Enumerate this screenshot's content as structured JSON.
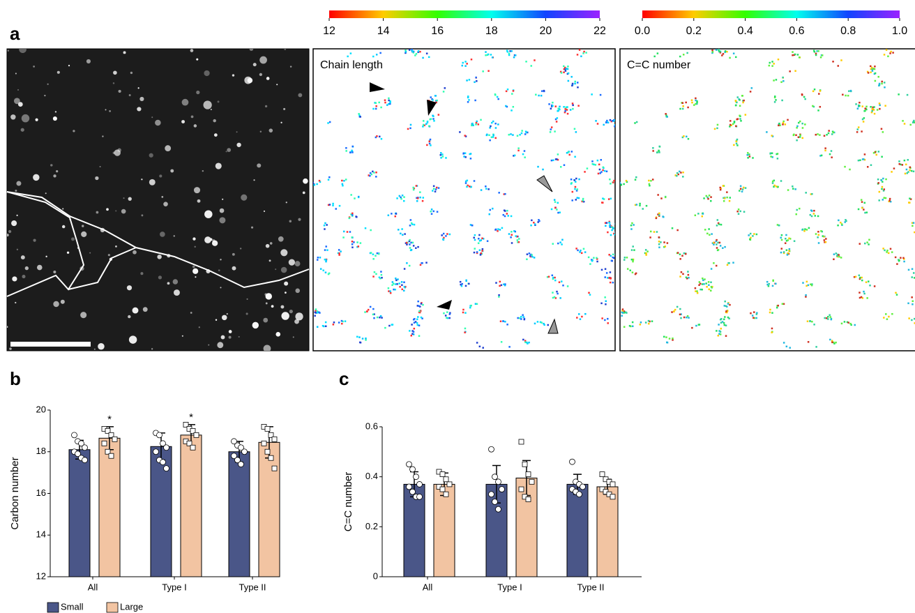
{
  "panel_labels": {
    "a": "a",
    "b": "b",
    "c": "c"
  },
  "image_labels": [
    "Chain length",
    "C=C number"
  ],
  "colorbars": [
    {
      "lim": [
        12,
        22
      ],
      "ticks": [
        12,
        14,
        16,
        18,
        20,
        22
      ]
    },
    {
      "lim": [
        0,
        1
      ],
      "ticks": [
        {
          "value": 0,
          "label": "0.0"
        },
        0.2,
        0.4,
        0.6,
        0.8,
        {
          "value": 1,
          "label": "1.0"
        }
      ]
    }
  ],
  "chart_data": [
    {
      "type": "bar",
      "ylabel": "Carbon number",
      "categories": [
        "All",
        "Type I",
        "Type II"
      ],
      "series": [
        {
          "name": "Small",
          "color": "#4a5688",
          "values": [
            18.1,
            18.25,
            18.0
          ],
          "errors": [
            0.45,
            0.65,
            0.5
          ],
          "points": [
            [
              18.8,
              18.5,
              18.4,
              18.2,
              18.0,
              17.9,
              17.7,
              17.6
            ],
            [
              18.9,
              18.8,
              18.4,
              18.2,
              18.0,
              17.6,
              17.5,
              17.2
            ],
            [
              18.5,
              18.3,
              18.2,
              18.0,
              17.8,
              17.6,
              17.4
            ]
          ]
        },
        {
          "name": "Large",
          "color": "#f2c4a2",
          "values": [
            18.65,
            18.8,
            18.45
          ],
          "errors": [
            0.55,
            0.5,
            0.75
          ],
          "points": [
            [
              19.1,
              19.0,
              18.8,
              18.6,
              18.4,
              18.0,
              17.8
            ],
            [
              19.3,
              19.1,
              19.0,
              18.8,
              18.5,
              18.4,
              18.2
            ],
            [
              19.2,
              19.1,
              18.8,
              18.6,
              18.4,
              18.0,
              17.7,
              17.2
            ]
          ],
          "marks": [
            "*",
            "*",
            null
          ]
        }
      ],
      "ylim": [
        12,
        20
      ],
      "yticks": [
        12,
        14,
        16,
        18,
        20
      ],
      "legend": "bottom-left"
    },
    {
      "type": "bar",
      "ylabel": "C=C number",
      "categories": [
        "All",
        "Type I",
        "Type II"
      ],
      "series": [
        {
          "color": "#4a5688",
          "values": [
            0.37,
            0.37,
            0.37
          ],
          "errors": [
            0.05,
            0.075,
            0.04
          ],
          "points": [
            [
              0.45,
              0.43,
              0.4,
              0.37,
              0.36,
              0.34,
              0.32,
              0.32
            ],
            [
              0.51,
              0.4,
              0.38,
              0.35,
              0.33,
              0.3,
              0.27
            ],
            [
              0.46,
              0.38,
              0.37,
              0.36,
              0.35,
              0.34,
              0.33
            ]
          ]
        },
        {
          "color": "#f2c4a2",
          "values": [
            0.37,
            0.395,
            0.36
          ],
          "errors": [
            0.045,
            0.07,
            0.03
          ],
          "points": [
            [
              0.42,
              0.41,
              0.39,
              0.37,
              0.36,
              0.35,
              0.33
            ],
            [
              0.54,
              0.45,
              0.41,
              0.38,
              0.35,
              0.32,
              0.31
            ],
            [
              0.41,
              0.39,
              0.38,
              0.37,
              0.35,
              0.34,
              0.33,
              0.32
            ]
          ]
        }
      ],
      "ylim": [
        0,
        0.6
      ],
      "yticks": [
        0,
        0.2,
        0.4,
        0.6
      ]
    }
  ]
}
